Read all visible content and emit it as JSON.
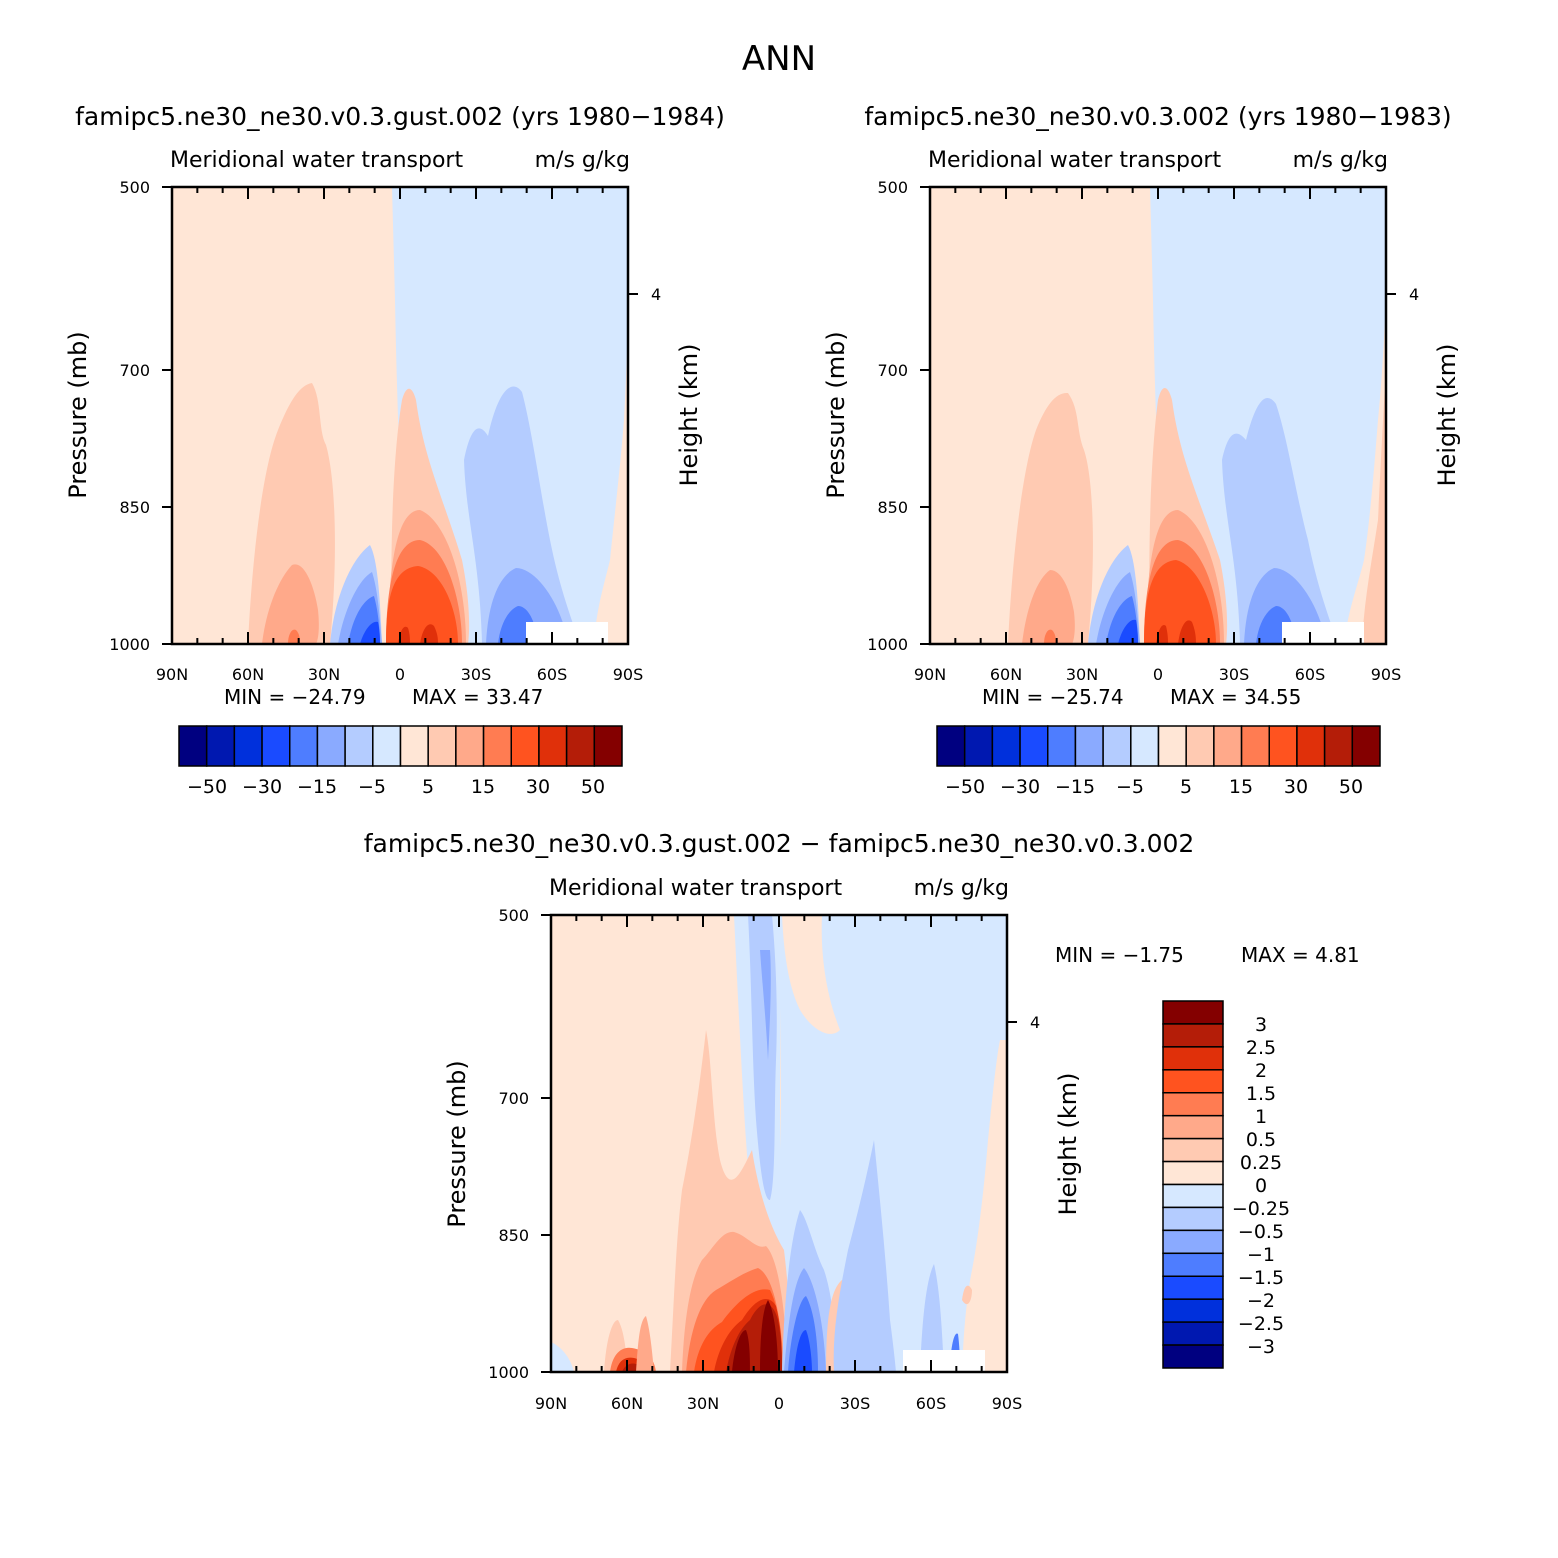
{
  "title": "ANN",
  "colors": {
    "diverging": [
      "#000080",
      "#0018B0",
      "#0030DC",
      "#1A4BFF",
      "#4E7DFF",
      "#8AAAFF",
      "#B4CCFF",
      "#D6E8FF",
      "#FFE6D6",
      "#FFCAB2",
      "#FFA98A",
      "#FF7C52",
      "#FF531F",
      "#E0300A",
      "#B41D08",
      "#840000"
    ]
  },
  "chart_data": [
    {
      "type": "heatmap",
      "panel": "left",
      "title": "famipc5.ne30_ne30.v0.3.gust.002 (yrs 1980−1984)",
      "left_label": "Meridional water transport",
      "right_label": "m/s g/kg",
      "ylabel": "Pressure (mb)",
      "y2label": "Height (km)",
      "x_ticks": [
        "90N",
        "60N",
        "30N",
        "0",
        "30S",
        "60S",
        "90S"
      ],
      "y_ticks": [
        "500",
        "700",
        "850",
        "1000"
      ],
      "y2_ticks": [
        "4"
      ],
      "min_label": "MIN = −24.79",
      "max_label": "MAX =  33.47",
      "min": -24.79,
      "max": 33.47,
      "colorbar_labels": [
        "−50",
        "−30",
        "−15",
        "−5",
        "5",
        "15",
        "30",
        "50"
      ]
    },
    {
      "type": "heatmap",
      "panel": "right",
      "title": "famipc5.ne30_ne30.v0.3.002 (yrs 1980−1983)",
      "left_label": "Meridional water transport",
      "right_label": "m/s g/kg",
      "ylabel": "Pressure (mb)",
      "y2label": "Height (km)",
      "x_ticks": [
        "90N",
        "60N",
        "30N",
        "0",
        "30S",
        "60S",
        "90S"
      ],
      "y_ticks": [
        "500",
        "700",
        "850",
        "1000"
      ],
      "y2_ticks": [
        "4"
      ],
      "min_label": "MIN = −25.74",
      "max_label": "MAX =  34.55",
      "min": -25.74,
      "max": 34.55,
      "colorbar_labels": [
        "−50",
        "−30",
        "−15",
        "−5",
        "5",
        "15",
        "30",
        "50"
      ]
    },
    {
      "type": "heatmap",
      "panel": "difference",
      "title": "famipc5.ne30_ne30.v0.3.gust.002 − famipc5.ne30_ne30.v0.3.002",
      "left_label": "Meridional water transport",
      "right_label": "m/s g/kg",
      "ylabel": "Pressure (mb)",
      "y2label": "Height (km)",
      "x_ticks": [
        "90N",
        "60N",
        "30N",
        "0",
        "30S",
        "60S",
        "90S"
      ],
      "y_ticks": [
        "500",
        "700",
        "850",
        "1000"
      ],
      "y2_ticks": [
        "4"
      ],
      "min_label": "MIN =   −1.75",
      "max_label": "MAX =    4.81",
      "min": -1.75,
      "max": 4.81,
      "colorbar_labels": [
        "3",
        "2.5",
        "2",
        "1.5",
        "1",
        "0.5",
        "0.25",
        "0",
        "−0.25",
        "−0.5",
        "−1",
        "−1.5",
        "−2",
        "−2.5",
        "−3"
      ]
    }
  ]
}
